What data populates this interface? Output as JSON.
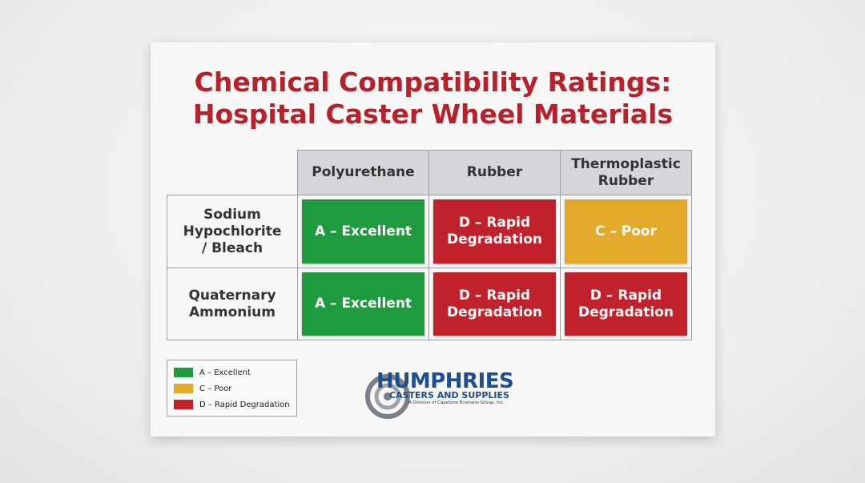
{
  "title": [
    "Chemical Compatibility Ratings:",
    "Hospital Caster Wheel Materials"
  ],
  "table": {
    "columns": [
      "Polyurethane",
      "Rubber",
      "Thermoplastic Rubber"
    ],
    "rows": [
      {
        "label": "Sodium Hypochlorite / Bleach",
        "cells": [
          {
            "text": "A – Excellent",
            "color": "#1f9a3e"
          },
          {
            "text": "D – Rapid Degradation",
            "color": "#c1212b"
          },
          {
            "text": "C – Poor",
            "color": "#e3a92a"
          }
        ]
      },
      {
        "label": "Quaternary Ammonium",
        "cells": [
          {
            "text": "A – Excellent",
            "color": "#1f9a3e"
          },
          {
            "text": "D – Rapid Degradation",
            "color": "#c1212b"
          },
          {
            "text": "D – Rapid Degradation",
            "color": "#c1212b"
          }
        ]
      }
    ]
  },
  "legend": [
    {
      "text": "A – Excellent",
      "color": "#1f9a3e"
    },
    {
      "text": "C – Poor",
      "color": "#e3a92a"
    },
    {
      "text": "D – Rapid Degradation",
      "color": "#c1212b"
    }
  ],
  "logo": {
    "name": "HUMPHRIES",
    "tagline": "CASTERS AND SUPPLIES",
    "division": "A Division of Capstone Business Group, Inc."
  }
}
